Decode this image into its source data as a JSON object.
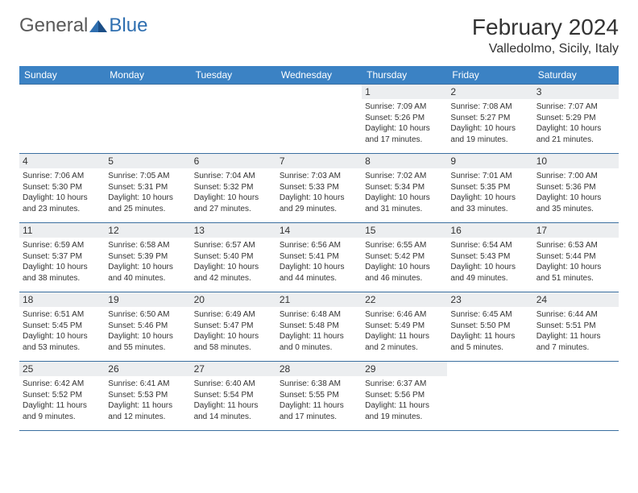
{
  "brand": {
    "general": "General",
    "blue": "Blue"
  },
  "title": "February 2024",
  "location": "Valledolmo, Sicily, Italy",
  "colors": {
    "header_bg": "#3b82c4",
    "header_text": "#ffffff",
    "daynum_bg": "#eceef0",
    "border": "#3b6fa0",
    "logo_gray": "#5a5a5a",
    "logo_blue": "#2f6fb0"
  },
  "day_headers": [
    "Sunday",
    "Monday",
    "Tuesday",
    "Wednesday",
    "Thursday",
    "Friday",
    "Saturday"
  ],
  "weeks": [
    [
      {
        "n": "",
        "sr": "",
        "ss": "",
        "dl": ""
      },
      {
        "n": "",
        "sr": "",
        "ss": "",
        "dl": ""
      },
      {
        "n": "",
        "sr": "",
        "ss": "",
        "dl": ""
      },
      {
        "n": "",
        "sr": "",
        "ss": "",
        "dl": ""
      },
      {
        "n": "1",
        "sr": "Sunrise: 7:09 AM",
        "ss": "Sunset: 5:26 PM",
        "dl": "Daylight: 10 hours and 17 minutes."
      },
      {
        "n": "2",
        "sr": "Sunrise: 7:08 AM",
        "ss": "Sunset: 5:27 PM",
        "dl": "Daylight: 10 hours and 19 minutes."
      },
      {
        "n": "3",
        "sr": "Sunrise: 7:07 AM",
        "ss": "Sunset: 5:29 PM",
        "dl": "Daylight: 10 hours and 21 minutes."
      }
    ],
    [
      {
        "n": "4",
        "sr": "Sunrise: 7:06 AM",
        "ss": "Sunset: 5:30 PM",
        "dl": "Daylight: 10 hours and 23 minutes."
      },
      {
        "n": "5",
        "sr": "Sunrise: 7:05 AM",
        "ss": "Sunset: 5:31 PM",
        "dl": "Daylight: 10 hours and 25 minutes."
      },
      {
        "n": "6",
        "sr": "Sunrise: 7:04 AM",
        "ss": "Sunset: 5:32 PM",
        "dl": "Daylight: 10 hours and 27 minutes."
      },
      {
        "n": "7",
        "sr": "Sunrise: 7:03 AM",
        "ss": "Sunset: 5:33 PM",
        "dl": "Daylight: 10 hours and 29 minutes."
      },
      {
        "n": "8",
        "sr": "Sunrise: 7:02 AM",
        "ss": "Sunset: 5:34 PM",
        "dl": "Daylight: 10 hours and 31 minutes."
      },
      {
        "n": "9",
        "sr": "Sunrise: 7:01 AM",
        "ss": "Sunset: 5:35 PM",
        "dl": "Daylight: 10 hours and 33 minutes."
      },
      {
        "n": "10",
        "sr": "Sunrise: 7:00 AM",
        "ss": "Sunset: 5:36 PM",
        "dl": "Daylight: 10 hours and 35 minutes."
      }
    ],
    [
      {
        "n": "11",
        "sr": "Sunrise: 6:59 AM",
        "ss": "Sunset: 5:37 PM",
        "dl": "Daylight: 10 hours and 38 minutes."
      },
      {
        "n": "12",
        "sr": "Sunrise: 6:58 AM",
        "ss": "Sunset: 5:39 PM",
        "dl": "Daylight: 10 hours and 40 minutes."
      },
      {
        "n": "13",
        "sr": "Sunrise: 6:57 AM",
        "ss": "Sunset: 5:40 PM",
        "dl": "Daylight: 10 hours and 42 minutes."
      },
      {
        "n": "14",
        "sr": "Sunrise: 6:56 AM",
        "ss": "Sunset: 5:41 PM",
        "dl": "Daylight: 10 hours and 44 minutes."
      },
      {
        "n": "15",
        "sr": "Sunrise: 6:55 AM",
        "ss": "Sunset: 5:42 PM",
        "dl": "Daylight: 10 hours and 46 minutes."
      },
      {
        "n": "16",
        "sr": "Sunrise: 6:54 AM",
        "ss": "Sunset: 5:43 PM",
        "dl": "Daylight: 10 hours and 49 minutes."
      },
      {
        "n": "17",
        "sr": "Sunrise: 6:53 AM",
        "ss": "Sunset: 5:44 PM",
        "dl": "Daylight: 10 hours and 51 minutes."
      }
    ],
    [
      {
        "n": "18",
        "sr": "Sunrise: 6:51 AM",
        "ss": "Sunset: 5:45 PM",
        "dl": "Daylight: 10 hours and 53 minutes."
      },
      {
        "n": "19",
        "sr": "Sunrise: 6:50 AM",
        "ss": "Sunset: 5:46 PM",
        "dl": "Daylight: 10 hours and 55 minutes."
      },
      {
        "n": "20",
        "sr": "Sunrise: 6:49 AM",
        "ss": "Sunset: 5:47 PM",
        "dl": "Daylight: 10 hours and 58 minutes."
      },
      {
        "n": "21",
        "sr": "Sunrise: 6:48 AM",
        "ss": "Sunset: 5:48 PM",
        "dl": "Daylight: 11 hours and 0 minutes."
      },
      {
        "n": "22",
        "sr": "Sunrise: 6:46 AM",
        "ss": "Sunset: 5:49 PM",
        "dl": "Daylight: 11 hours and 2 minutes."
      },
      {
        "n": "23",
        "sr": "Sunrise: 6:45 AM",
        "ss": "Sunset: 5:50 PM",
        "dl": "Daylight: 11 hours and 5 minutes."
      },
      {
        "n": "24",
        "sr": "Sunrise: 6:44 AM",
        "ss": "Sunset: 5:51 PM",
        "dl": "Daylight: 11 hours and 7 minutes."
      }
    ],
    [
      {
        "n": "25",
        "sr": "Sunrise: 6:42 AM",
        "ss": "Sunset: 5:52 PM",
        "dl": "Daylight: 11 hours and 9 minutes."
      },
      {
        "n": "26",
        "sr": "Sunrise: 6:41 AM",
        "ss": "Sunset: 5:53 PM",
        "dl": "Daylight: 11 hours and 12 minutes."
      },
      {
        "n": "27",
        "sr": "Sunrise: 6:40 AM",
        "ss": "Sunset: 5:54 PM",
        "dl": "Daylight: 11 hours and 14 minutes."
      },
      {
        "n": "28",
        "sr": "Sunrise: 6:38 AM",
        "ss": "Sunset: 5:55 PM",
        "dl": "Daylight: 11 hours and 17 minutes."
      },
      {
        "n": "29",
        "sr": "Sunrise: 6:37 AM",
        "ss": "Sunset: 5:56 PM",
        "dl": "Daylight: 11 hours and 19 minutes."
      },
      {
        "n": "",
        "sr": "",
        "ss": "",
        "dl": ""
      },
      {
        "n": "",
        "sr": "",
        "ss": "",
        "dl": ""
      }
    ]
  ]
}
